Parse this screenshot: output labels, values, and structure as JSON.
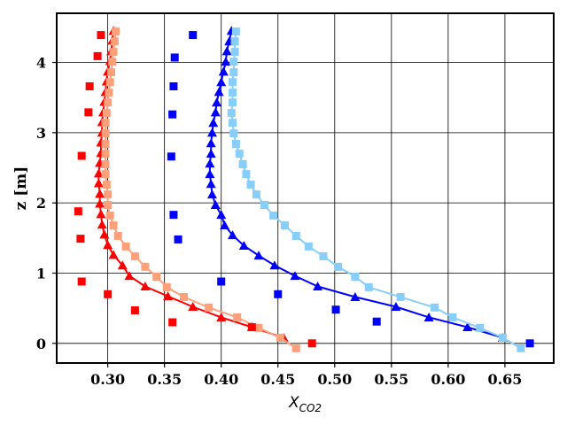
{
  "chart_data": {
    "type": "scatter",
    "title": "",
    "xlabel_main": "X",
    "xlabel_sub": "CO2",
    "ylabel": "z [m]",
    "xlim": [
      0.255,
      0.693
    ],
    "ylim": [
      -0.28,
      4.7
    ],
    "xticks": [
      0.3,
      0.35,
      0.4,
      0.45,
      0.5,
      0.55,
      0.6,
      0.65
    ],
    "xtick_labels": [
      "0.30",
      "0.35",
      "0.40",
      "0.45",
      "0.50",
      "0.55",
      "0.60",
      "0.65"
    ],
    "yticks": [
      0,
      1,
      2,
      3,
      4
    ],
    "ytick_labels": [
      "0",
      "1",
      "2",
      "3",
      "4"
    ],
    "grid": true,
    "legend": "none",
    "series": [
      {
        "color": "#ff0000",
        "style": "line-triangle",
        "points": [
          [
            0.455,
            0.08
          ],
          [
            0.427,
            0.23
          ],
          [
            0.4,
            0.37
          ],
          [
            0.375,
            0.52
          ],
          [
            0.353,
            0.67
          ],
          [
            0.333,
            0.81
          ],
          [
            0.319,
            0.96
          ],
          [
            0.313,
            1.11
          ],
          [
            0.305,
            1.26
          ],
          [
            0.3,
            1.4
          ],
          [
            0.297,
            1.55
          ],
          [
            0.295,
            1.69
          ],
          [
            0.294,
            1.84
          ],
          [
            0.293,
            1.99
          ],
          [
            0.293,
            2.13
          ],
          [
            0.292,
            2.28
          ],
          [
            0.292,
            2.42
          ],
          [
            0.293,
            2.57
          ],
          [
            0.294,
            2.71
          ],
          [
            0.294,
            2.86
          ],
          [
            0.295,
            3.0
          ],
          [
            0.295,
            3.15
          ],
          [
            0.296,
            3.29
          ],
          [
            0.297,
            3.44
          ],
          [
            0.298,
            3.58
          ],
          [
            0.299,
            3.73
          ],
          [
            0.3,
            3.87
          ],
          [
            0.302,
            4.02
          ],
          [
            0.303,
            4.16
          ],
          [
            0.304,
            4.31
          ],
          [
            0.305,
            4.45
          ]
        ]
      },
      {
        "color": "#ffa07a",
        "style": "line-square",
        "points": [
          [
            0.466,
            -0.07
          ],
          [
            0.452,
            0.08
          ],
          [
            0.433,
            0.22
          ],
          [
            0.414,
            0.37
          ],
          [
            0.389,
            0.51
          ],
          [
            0.367,
            0.66
          ],
          [
            0.352,
            0.8
          ],
          [
            0.343,
            0.95
          ],
          [
            0.333,
            1.09
          ],
          [
            0.324,
            1.24
          ],
          [
            0.316,
            1.38
          ],
          [
            0.309,
            1.53
          ],
          [
            0.305,
            1.68
          ],
          [
            0.302,
            1.82
          ],
          [
            0.3,
            1.97
          ],
          [
            0.3,
            2.12
          ],
          [
            0.299,
            2.26
          ],
          [
            0.298,
            2.41
          ],
          [
            0.298,
            2.55
          ],
          [
            0.298,
            2.7
          ],
          [
            0.298,
            2.84
          ],
          [
            0.298,
            2.99
          ],
          [
            0.298,
            3.14
          ],
          [
            0.299,
            3.28
          ],
          [
            0.3,
            3.43
          ],
          [
            0.301,
            3.57
          ],
          [
            0.302,
            3.72
          ],
          [
            0.303,
            3.86
          ],
          [
            0.304,
            4.01
          ],
          [
            0.305,
            4.15
          ],
          [
            0.306,
            4.3
          ],
          [
            0.307,
            4.44
          ]
        ]
      },
      {
        "color": "#0000ff",
        "style": "line-triangle",
        "points": [
          [
            0.648,
            0.08
          ],
          [
            0.617,
            0.23
          ],
          [
            0.583,
            0.37
          ],
          [
            0.554,
            0.52
          ],
          [
            0.518,
            0.66
          ],
          [
            0.485,
            0.81
          ],
          [
            0.465,
            0.96
          ],
          [
            0.447,
            1.11
          ],
          [
            0.433,
            1.25
          ],
          [
            0.42,
            1.39
          ],
          [
            0.41,
            1.54
          ],
          [
            0.403,
            1.68
          ],
          [
            0.4,
            1.83
          ],
          [
            0.395,
            1.97
          ],
          [
            0.392,
            2.12
          ],
          [
            0.391,
            2.27
          ],
          [
            0.39,
            2.41
          ],
          [
            0.39,
            2.56
          ],
          [
            0.391,
            2.7
          ],
          [
            0.391,
            2.85
          ],
          [
            0.392,
            3.0
          ],
          [
            0.393,
            3.14
          ],
          [
            0.395,
            3.29
          ],
          [
            0.396,
            3.43
          ],
          [
            0.398,
            3.58
          ],
          [
            0.4,
            3.72
          ],
          [
            0.402,
            3.87
          ],
          [
            0.404,
            4.01
          ],
          [
            0.405,
            4.16
          ],
          [
            0.407,
            4.3
          ],
          [
            0.409,
            4.45
          ]
        ]
      },
      {
        "color": "#87cefa",
        "style": "line-square",
        "points": [
          [
            0.664,
            -0.07
          ],
          [
            0.648,
            0.08
          ],
          [
            0.628,
            0.22
          ],
          [
            0.604,
            0.37
          ],
          [
            0.588,
            0.51
          ],
          [
            0.558,
            0.66
          ],
          [
            0.53,
            0.8
          ],
          [
            0.518,
            0.95
          ],
          [
            0.503,
            1.09
          ],
          [
            0.49,
            1.24
          ],
          [
            0.477,
            1.38
          ],
          [
            0.466,
            1.53
          ],
          [
            0.456,
            1.68
          ],
          [
            0.446,
            1.82
          ],
          [
            0.438,
            1.97
          ],
          [
            0.431,
            2.12
          ],
          [
            0.426,
            2.26
          ],
          [
            0.422,
            2.41
          ],
          [
            0.419,
            2.55
          ],
          [
            0.416,
            2.7
          ],
          [
            0.413,
            2.84
          ],
          [
            0.411,
            2.99
          ],
          [
            0.41,
            3.14
          ],
          [
            0.409,
            3.28
          ],
          [
            0.41,
            3.43
          ],
          [
            0.41,
            3.57
          ],
          [
            0.41,
            3.72
          ],
          [
            0.411,
            3.86
          ],
          [
            0.411,
            4.01
          ],
          [
            0.412,
            4.15
          ],
          [
            0.412,
            4.3
          ],
          [
            0.413,
            4.44
          ]
        ]
      },
      {
        "color": "#ff0000",
        "style": "scatter-square",
        "points": [
          [
            0.48,
            0.0
          ],
          [
            0.427,
            0.23
          ],
          [
            0.357,
            0.3
          ],
          [
            0.324,
            0.47
          ],
          [
            0.3,
            0.7
          ],
          [
            0.277,
            0.88
          ],
          [
            0.276,
            1.49
          ],
          [
            0.274,
            1.88
          ],
          [
            0.277,
            2.67
          ],
          [
            0.283,
            3.29
          ],
          [
            0.284,
            3.66
          ],
          [
            0.291,
            4.09
          ],
          [
            0.294,
            4.39
          ]
        ]
      },
      {
        "color": "#0000ff",
        "style": "scatter-square",
        "points": [
          [
            0.672,
            0.0
          ],
          [
            0.537,
            0.31
          ],
          [
            0.501,
            0.48
          ],
          [
            0.45,
            0.7
          ],
          [
            0.4,
            0.88
          ],
          [
            0.362,
            1.48
          ],
          [
            0.358,
            1.83
          ],
          [
            0.356,
            2.66
          ],
          [
            0.357,
            3.26
          ],
          [
            0.358,
            3.66
          ],
          [
            0.359,
            4.07
          ],
          [
            0.375,
            4.39
          ]
        ]
      }
    ]
  }
}
